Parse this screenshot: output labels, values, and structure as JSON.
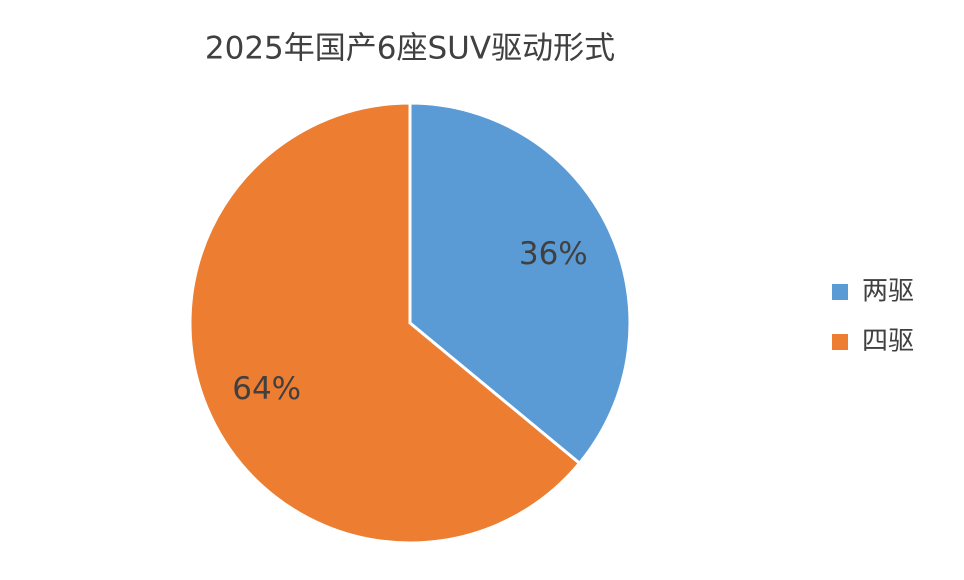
{
  "chart_data": {
    "type": "pie",
    "title": "2025年国产6座SUV驱动形式",
    "categories": [
      "两驱",
      "四驱"
    ],
    "values": [
      36,
      64
    ],
    "value_labels": [
      "36%",
      "64%"
    ],
    "colors": [
      "#5b9bd5",
      "#ed7d31"
    ],
    "legend": "right"
  }
}
